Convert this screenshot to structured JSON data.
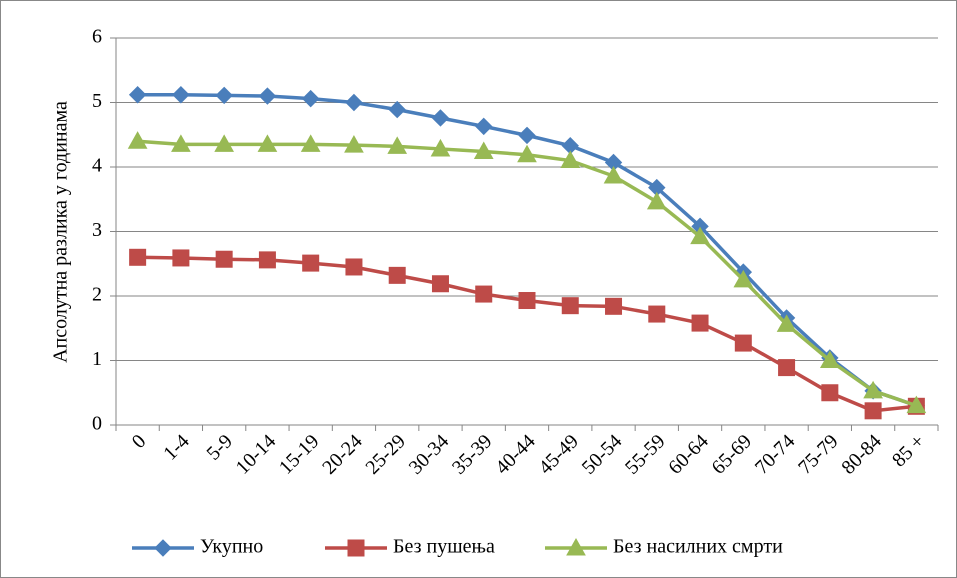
{
  "chart_data": {
    "type": "line",
    "y_label": "Апсолутна разлика у годинама",
    "categories": [
      "0",
      "1-4",
      "5-9",
      "10-14",
      "15-19",
      "20-24",
      "25-29",
      "30-34",
      "35-39",
      "40-44",
      "45-49",
      "50-54",
      "55-59",
      "60-64",
      "65-69",
      "70-74",
      "75-79",
      "80-84",
      "85 +"
    ],
    "series": [
      {
        "name": "Укупно",
        "color": "#4a7ebb",
        "marker": "diamond",
        "values": [
          5.12,
          5.12,
          5.11,
          5.1,
          5.06,
          5.0,
          4.89,
          4.76,
          4.63,
          4.49,
          4.33,
          4.07,
          3.68,
          3.08,
          2.37,
          1.66,
          1.04,
          0.53,
          0.3
        ]
      },
      {
        "name": "Без пушења",
        "color": "#be4b48",
        "marker": "square",
        "values": [
          2.6,
          2.59,
          2.57,
          2.56,
          2.51,
          2.45,
          2.32,
          2.19,
          2.03,
          1.93,
          1.85,
          1.84,
          1.72,
          1.58,
          1.27,
          0.89,
          0.5,
          0.22,
          0.29
        ]
      },
      {
        "name": "Без насилних смрти",
        "color": "#98b954",
        "marker": "triangle",
        "values": [
          4.4,
          4.35,
          4.35,
          4.35,
          4.35,
          4.34,
          4.32,
          4.28,
          4.24,
          4.19,
          4.1,
          3.86,
          3.46,
          2.92,
          2.25,
          1.56,
          1.0,
          0.53,
          0.3
        ]
      }
    ],
    "ylim": [
      0,
      6
    ],
    "yticks": [
      0,
      1,
      2,
      3,
      4,
      5,
      6
    ],
    "grid": true,
    "legend": "bottom"
  }
}
